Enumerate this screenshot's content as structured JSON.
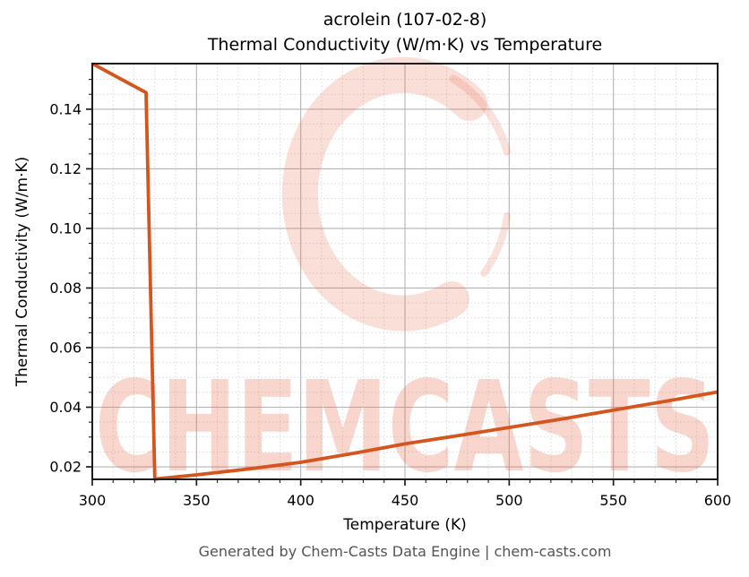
{
  "title": {
    "line1": "acrolein (107-02-8)",
    "line2": "Thermal Conductivity (W/m·K) vs Temperature"
  },
  "footer": "Generated by Chem-Casts Data Engine | chem-casts.com",
  "watermark": {
    "text": "CHEMCASTS",
    "logo": "c-brush-logo",
    "color": "rgba(226,92,56,0.25)",
    "logo_color": "rgba(228,96,60,0.20)"
  },
  "chart_data": {
    "type": "line",
    "title": "acrolein (107-02-8)\nThermal Conductivity (W/m·K) vs Temperature",
    "xlabel": "Temperature (K)",
    "ylabel": "Thermal Conductivity (W/m·K)",
    "xlim": [
      300,
      600
    ],
    "ylim": [
      0.0158,
      0.1553
    ],
    "x_ticks": [
      300,
      350,
      400,
      450,
      500,
      550,
      600
    ],
    "x_tick_labels": [
      "300",
      "350",
      "400",
      "450",
      "500",
      "550",
      "600"
    ],
    "y_ticks": [
      0.02,
      0.04,
      0.06,
      0.08,
      0.1,
      0.12,
      0.14
    ],
    "y_tick_labels": [
      "0.02",
      "0.04",
      "0.06",
      "0.08",
      "0.10",
      "0.12",
      "0.14"
    ],
    "x_minor_step": 10,
    "y_minor_step": 0.005,
    "grid": true,
    "legend": "none",
    "line_color": "#d4551e",
    "line_width": 3.8,
    "series": [
      {
        "name": "thermal-conductivity",
        "phase_note": "liquid branch, vertical drop at boiling point, vapor branch",
        "points": [
          [
            300,
            0.1553
          ],
          [
            325.8,
            0.1456
          ],
          [
            330,
            0.0159
          ],
          [
            350,
            0.0173
          ],
          [
            375,
            0.0193
          ],
          [
            400,
            0.0215
          ],
          [
            425,
            0.0245
          ],
          [
            450,
            0.0277
          ],
          [
            475,
            0.0304
          ],
          [
            500,
            0.0332
          ],
          [
            525,
            0.036
          ],
          [
            550,
            0.039
          ],
          [
            575,
            0.042
          ],
          [
            600,
            0.0451
          ]
        ]
      }
    ]
  }
}
